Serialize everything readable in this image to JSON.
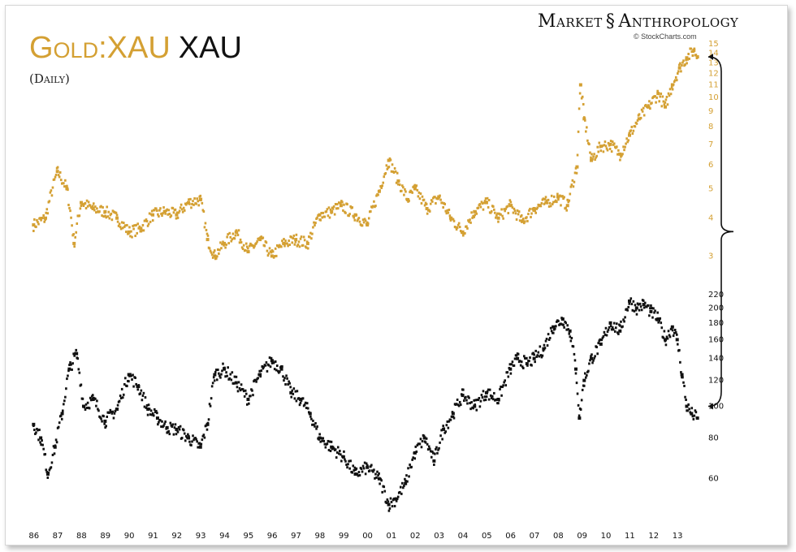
{
  "header": {
    "title_ratio": "Gold:XAU",
    "title_index": "XAU",
    "subtitle": "(Daily)"
  },
  "brand": {
    "name_left": "Market",
    "name_right": "Anthropology",
    "logo_icon": "dna-helix-icon",
    "source": "© StockCharts.com"
  },
  "colors": {
    "gold": "#d4a033",
    "black": "#111111"
  },
  "chart_data": [
    {
      "type": "scatter",
      "title": "Gold:XAU",
      "ylim": [
        2.5,
        15.2
      ],
      "yticks": [
        3,
        4,
        5,
        6,
        7,
        8,
        9,
        10,
        11,
        12,
        13,
        14,
        15
      ],
      "log_scale": true,
      "series": [
        {
          "name": "Gold:XAU",
          "x": [
            1986.0,
            1986.5,
            1987.0,
            1987.4,
            1987.7,
            1988.0,
            1988.5,
            1989.0,
            1989.5,
            1990.0,
            1990.5,
            1991.0,
            1991.5,
            1992.0,
            1992.5,
            1993.0,
            1993.3,
            1993.6,
            1994.0,
            1994.5,
            1995.0,
            1995.5,
            1996.0,
            1996.5,
            1997.0,
            1997.5,
            1998.0,
            1998.5,
            1998.9,
            1999.5,
            2000.0,
            2000.5,
            2000.9,
            2001.3,
            2001.7,
            2002.0,
            2002.5,
            2003.0,
            2003.5,
            2004.0,
            2004.5,
            2005.0,
            2005.5,
            2006.0,
            2006.5,
            2007.0,
            2007.5,
            2008.0,
            2008.4,
            2008.8,
            2008.95,
            2009.1,
            2009.4,
            2009.8,
            2010.2,
            2010.6,
            2011.0,
            2011.4,
            2011.8,
            2012.2,
            2012.5,
            2012.8,
            2013.1,
            2013.4,
            2013.7,
            2013.85
          ],
          "y": [
            3.8,
            4.0,
            5.7,
            5.0,
            3.3,
            4.5,
            4.3,
            4.2,
            4.0,
            3.6,
            3.7,
            4.1,
            4.2,
            4.1,
            4.5,
            4.6,
            3.4,
            3.0,
            3.3,
            3.6,
            3.1,
            3.4,
            3.0,
            3.3,
            3.4,
            3.3,
            4.1,
            4.2,
            4.4,
            4.1,
            3.8,
            4.9,
            6.2,
            5.3,
            4.6,
            5.0,
            4.3,
            4.7,
            4.0,
            3.6,
            4.2,
            4.5,
            4.0,
            4.4,
            3.9,
            4.3,
            4.5,
            4.7,
            4.4,
            5.9,
            11.0,
            8.5,
            6.2,
            6.9,
            7.0,
            6.5,
            7.5,
            8.5,
            9.3,
            10.3,
            9.3,
            11.0,
            12.5,
            13.5,
            14.3,
            13.6
          ]
        }
      ]
    },
    {
      "type": "scatter",
      "title": "XAU",
      "ylim": [
        45,
        230
      ],
      "yticks": [
        60,
        80,
        100,
        120,
        140,
        160,
        180,
        200,
        220
      ],
      "log_scale": true,
      "xtick_labels": [
        "86",
        "87",
        "88",
        "89",
        "90",
        "91",
        "92",
        "93",
        "94",
        "95",
        "96",
        "97",
        "98",
        "99",
        "00",
        "01",
        "02",
        "03",
        "04",
        "05",
        "06",
        "07",
        "08",
        "09",
        "10",
        "11",
        "12",
        "13"
      ],
      "series": [
        {
          "name": "XAU",
          "x": [
            1986.0,
            1986.3,
            1986.6,
            1986.9,
            1987.2,
            1987.5,
            1987.8,
            1988.1,
            1988.5,
            1989.0,
            1989.5,
            1990.0,
            1990.4,
            1990.8,
            1991.2,
            1991.6,
            1992.0,
            1992.5,
            1993.0,
            1993.3,
            1993.6,
            1994.0,
            1994.5,
            1995.0,
            1995.5,
            1996.0,
            1996.4,
            1996.8,
            1997.2,
            1997.6,
            1998.0,
            1998.5,
            1999.0,
            1999.5,
            2000.0,
            2000.5,
            2000.9,
            2001.2,
            2001.6,
            2002.0,
            2002.4,
            2002.8,
            2003.2,
            2003.6,
            2004.0,
            2004.5,
            2005.0,
            2005.5,
            2006.0,
            2006.3,
            2006.7,
            2007.0,
            2007.4,
            2007.8,
            2008.2,
            2008.5,
            2008.75,
            2008.9,
            2009.1,
            2009.4,
            2009.8,
            2010.2,
            2010.6,
            2011.0,
            2011.3,
            2011.6,
            2011.9,
            2012.2,
            2012.5,
            2012.8,
            2013.0,
            2013.2,
            2013.4,
            2013.6,
            2013.85
          ],
          "y": [
            88,
            80,
            62,
            75,
            95,
            130,
            145,
            100,
            105,
            90,
            98,
            125,
            115,
            98,
            92,
            86,
            85,
            80,
            75,
            88,
            125,
            130,
            118,
            105,
            125,
            138,
            130,
            110,
            105,
            95,
            80,
            75,
            70,
            62,
            65,
            60,
            50,
            52,
            58,
            72,
            80,
            68,
            85,
            95,
            108,
            100,
            110,
            105,
            130,
            140,
            135,
            140,
            150,
            175,
            185,
            170,
            130,
            92,
            120,
            140,
            155,
            180,
            170,
            210,
            200,
            205,
            195,
            185,
            160,
            175,
            160,
            125,
            100,
            95,
            92
          ]
        }
      ]
    }
  ]
}
